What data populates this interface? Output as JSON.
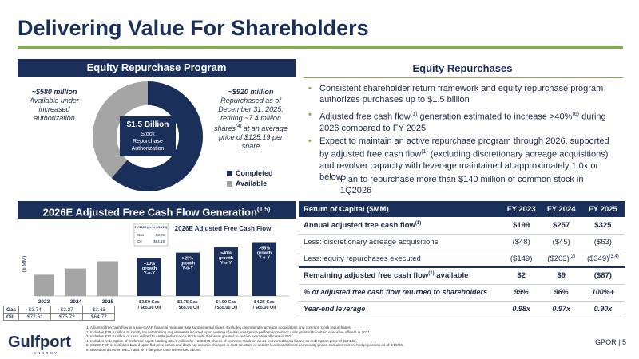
{
  "header": {
    "title": "Delivering Value For Shareholders"
  },
  "repurchase_program": {
    "heading": "Equity Repurchase Program",
    "left_amount": "~$580 million",
    "left_text": "Available under increased authorization",
    "right_amount": "~$920 million",
    "right_line1": "Repurchased as of December 31, 2025, retiring ~7.4 million shares",
    "right_sup": "(4)",
    "right_line2": "at an average price of $125.19 per share",
    "center_amount": "$1.5 Billion",
    "center_text": "Stock Repurchase Authorization",
    "completed_share": 0.613,
    "colors": {
      "completed": "#1b2f5b",
      "available": "#a5a5a5"
    },
    "legend": [
      {
        "label": "Completed"
      },
      {
        "label": "Available"
      }
    ]
  },
  "equity_repurchases": {
    "heading": "Equity Repurchases",
    "bullets": [
      {
        "text": "Consistent shareholder return framework and equity repurchase program authorizes purchases up to $1.5 billion"
      },
      {
        "pre": "Adjusted free cash flow",
        "sup": "(1)",
        "post": " generation estimated to increase >40%",
        "sup2": "(6)",
        "post2": " during 2026 compared to FY 2025"
      },
      {
        "pre": "Expect to maintain an active repurchase program through 2026, supported by adjusted free cash flow",
        "sup": "(1)",
        "post": " (excluding discretionary acreage acquisitions) and revolver capacity with leverage maintained at approximately 1.0x or below"
      }
    ],
    "sub_bullet": "Plan to repurchase more than $140 million of common stock in 1Q2026"
  },
  "fcf_section": {
    "heading": "2026E Adjusted Free Cash Flow Generation",
    "heading_sup": "(1,5)",
    "ylabel": "($ MM)",
    "chart_title": "2026E Adjusted Free Cash Flow",
    "price_box": {
      "title": "FY 2026 (as of 2/19/26)",
      "gas_label": "Gas",
      "gas_value": "$3.86",
      "oil_label": "Oil",
      "oil_value": "$64.19"
    },
    "price_rows": [
      {
        "label": "Gas",
        "values": [
          "$2.74",
          "$2.27",
          "$3.43"
        ]
      },
      {
        "label": "Oil",
        "values": [
          "$77.61",
          "$75.72",
          "$64.77"
        ]
      }
    ]
  },
  "chart_data": [
    {
      "type": "bar",
      "title": "",
      "categories": [
        "2023",
        "2024",
        "2025"
      ],
      "values": [
        199,
        257,
        325
      ],
      "ylabel": "($ MM)",
      "ylim": [
        0,
        560
      ],
      "color": "#a5a5a5",
      "grid": false
    },
    {
      "type": "bar",
      "title": "2026E Adjusted Free Cash Flow",
      "categories": [
        "$3.50 Gas / $65.00 Oil",
        "$3.75 Gas / $65.00 Oil",
        "$4.00 Gas / $65.00 Oil",
        "$4.25 Gas / $65.00 Oil"
      ],
      "values": [
        358,
        406,
        455,
        504
      ],
      "bar_labels": [
        "+10% growth Y-o-Y",
        ">25% growth Y-o-Y",
        ">40% growth Y-o-Y",
        ">55% growth Y-o-Y"
      ],
      "ylim": [
        0,
        560
      ],
      "color": "#1b2f5b",
      "grid": false
    }
  ],
  "table": {
    "headers": [
      "Return of Capital ($MM)",
      "FY 2023",
      "FY 2024",
      "FY 2025"
    ],
    "rows": [
      {
        "label": "Annual adjusted free cash flow",
        "sup": "(1)",
        "values": [
          "$199",
          "$257",
          "$325"
        ],
        "style": "bold"
      },
      {
        "label": "Less: discretionary acreage acquisitions",
        "sup": "",
        "values": [
          "($48)",
          "($45)",
          "($63)"
        ],
        "style": "normal"
      },
      {
        "label": "Less: equity repurchases executed",
        "sup": "",
        "values": [
          "($149)",
          "($203)",
          "($349)"
        ],
        "value_sups": [
          "",
          "(2)",
          "(3,4)"
        ],
        "style": "normal"
      },
      {
        "label": "Remaining adjusted free cash flow",
        "sup": "(1)",
        "label_post": " available",
        "values": [
          "$2",
          "$9",
          "($87)"
        ],
        "style": "bold thick"
      },
      {
        "label": "% of adjusted free cash flow returned to shareholders",
        "sup": "",
        "values": [
          "99%",
          "96%",
          "100%+"
        ],
        "style": "ital"
      },
      {
        "label": "Year-end leverage",
        "sup": "",
        "values": [
          "0.98x",
          "0.97x",
          "0.90x"
        ],
        "style": "ital"
      }
    ]
  },
  "footnotes": [
    "1.    Adjusted free cash flow is a non-GAAP financial measure; see supplemental slides. Excludes discretionary acreage acquisitions and common stock repurchases.",
    "2.    Includes $18.4 million to satisfy tax withholding requirements incurred upon vesting of initial emergence performance stock units granted to certain executive officers in 2021.",
    "3.    Includes $12.3 million of cash utilized to settle performance stock units that were granted to certain executive officers in 2022.",
    "4.    Includes redemption of preferred equity totaling $31.3 million for ~180,000 shares of common stock on an as-converted basis based on redemption price of $174.22.",
    "5.    2026E FCF sensitivities based upon flat price cases and does not assume changes in cost structure or activity levels at different commodity prices. Includes current hedge position as of 2/19/26.",
    "6.    Based on $4.00 NYMEX / $65 WTI flat price case referenced above."
  ],
  "footer": {
    "logo": "Gulfport",
    "logo_sub": "ENERGY",
    "page_ref": "GPOR | 5"
  }
}
